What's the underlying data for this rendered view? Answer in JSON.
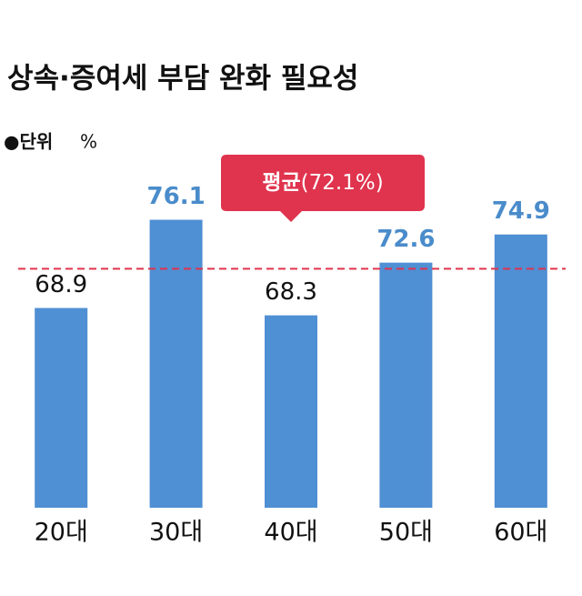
{
  "chart_data": {
    "type": "bar",
    "title": "상속·증여세 부담 완화 필요성",
    "unit_label": "●단위",
    "unit": "%",
    "categories": [
      "20대",
      "30대",
      "40대",
      "50대",
      "60대"
    ],
    "values": [
      68.9,
      76.1,
      68.3,
      72.6,
      74.9
    ],
    "color": "#4f8fd3",
    "highlight_color": "#4a8ccb",
    "highlight_above_average": true,
    "ylim": [
      52.6,
      80
    ],
    "average": {
      "value": 72.1,
      "name": "평균",
      "label": "(72.1%)",
      "color": "#e0334d"
    }
  }
}
